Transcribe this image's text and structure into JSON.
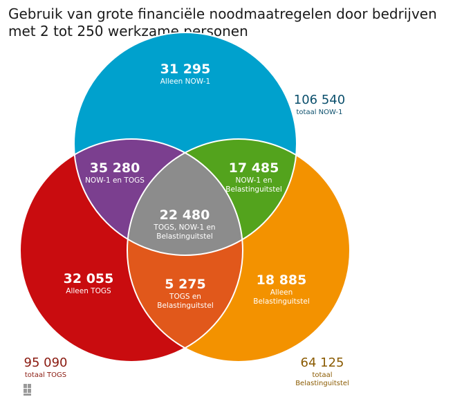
{
  "title": "Gebruik van grote financiële noodmaatregelen door bedrijven met 2 tot 250 werkzame personen",
  "colors": {
    "now": "#00a1cd",
    "togs": "#c90c0f",
    "belasting": "#f39200",
    "now_togs": "#7b3f8f",
    "now_belasting": "#53a31d",
    "togs_belasting": "#e1581b",
    "all": "#8c8c8c",
    "now_total_text": "#0b4f6c",
    "togs_total_text": "#8a1a10",
    "belasting_total_text": "#8a5a00"
  },
  "chart_data": {
    "type": "venn",
    "sets": [
      {
        "key": "now",
        "total": "106 540",
        "total_label": "totaal NOW-1"
      },
      {
        "key": "togs",
        "total": "95 090",
        "total_label": "totaal TOGS"
      },
      {
        "key": "belasting",
        "total": "64 125",
        "total_label_lines": [
          "totaal",
          "Belastinguitstel"
        ]
      }
    ],
    "regions": {
      "only_now": {
        "value": "31 295",
        "label_lines": [
          "Alleen NOW-1"
        ]
      },
      "now_togs": {
        "value": "35 280",
        "label_lines": [
          "NOW-1 en TOGS"
        ]
      },
      "now_belasting": {
        "value": "17 485",
        "label_lines": [
          "NOW-1 en",
          "Belastinguitstel"
        ]
      },
      "all_three": {
        "value": "22 480",
        "label_lines": [
          "TOGS, NOW-1 en",
          "Belastinguitstel"
        ]
      },
      "only_togs": {
        "value": "32 055",
        "label_lines": [
          "Alleen TOGS"
        ]
      },
      "togs_belasting": {
        "value": "5 275",
        "label_lines": [
          "TOGS en",
          "Belastinguitstel"
        ]
      },
      "only_belasting": {
        "value": "18 885",
        "label_lines": [
          "Alleen",
          "Belastinguitstel"
        ]
      }
    }
  },
  "logo": {
    "icon": "cbs-logo-icon"
  }
}
